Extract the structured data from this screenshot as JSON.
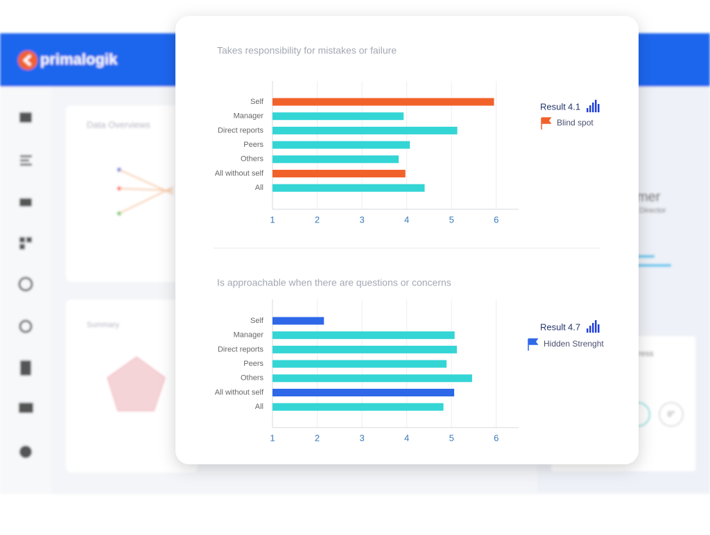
{
  "header": {
    "logo": "primalogik"
  },
  "background": {
    "panel_1_title": "Data Overviews",
    "panel_2_title": "Summary",
    "profile_name": "mer",
    "profile_role": "Director",
    "progress_title": "ress",
    "progress_value": "0°"
  },
  "chart_data": [
    {
      "type": "hbar",
      "title": "Takes responsibility for mistakes or failure",
      "categories": [
        "Self",
        "Manager",
        "Direct reports",
        "Peers",
        "Others",
        "All without self",
        "All"
      ],
      "values": [
        5.95,
        3.93,
        5.13,
        4.07,
        3.82,
        3.97,
        4.4
      ],
      "colors": [
        "#f1622b",
        "#34d5d5",
        "#34d5d5",
        "#34d5d5",
        "#34d5d5",
        "#f1622b",
        "#34d5d5"
      ],
      "xlim": [
        1,
        6.5
      ],
      "xticks": [
        1,
        2,
        3,
        4,
        5,
        6
      ],
      "grid": true,
      "result_label": "Result",
      "result": 4.1,
      "flag_label": "Blind spot",
      "flag_color": "#f1622b"
    },
    {
      "type": "hbar",
      "title": "Is approachable when there are questions or concerns",
      "categories": [
        "Self",
        "Manager",
        "Direct reports",
        "Peers",
        "Others",
        "All without self",
        "All"
      ],
      "values": [
        2.15,
        5.07,
        5.12,
        4.89,
        5.46,
        5.06,
        4.82
      ],
      "colors": [
        "#2e68e8",
        "#34d5d5",
        "#34d5d5",
        "#34d5d5",
        "#34d5d5",
        "#2e68e8",
        "#34d5d5"
      ],
      "xlim": [
        1,
        6.5
      ],
      "xticks": [
        1,
        2,
        3,
        4,
        5,
        6
      ],
      "grid": true,
      "result_label": "Result",
      "result": 4.7,
      "flag_label": "Hidden Strenght",
      "flag_color": "#2e68e8"
    }
  ]
}
